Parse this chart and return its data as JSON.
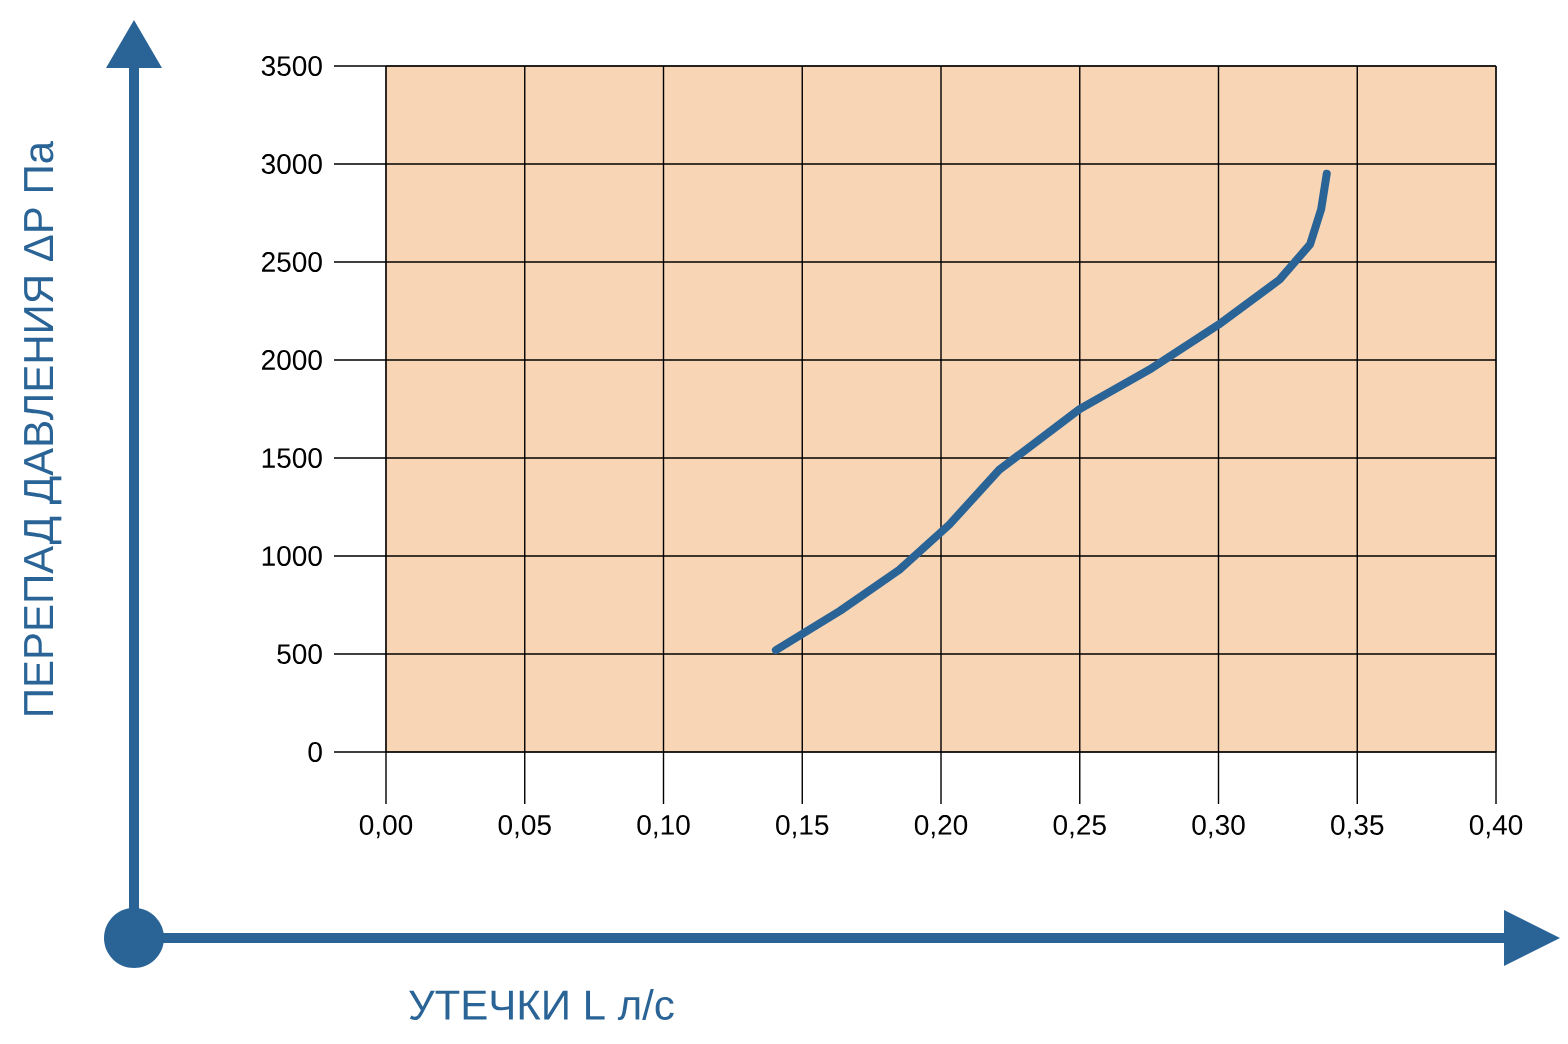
{
  "chart_data": {
    "type": "line",
    "xlabel": "УТЕЧКИ L л/с",
    "ylabel": "ПЕРЕПАД ДАВЛЕНИЯ  ΔP Па",
    "x": [
      0.1405,
      0.1636,
      0.185,
      0.203,
      0.221,
      0.25,
      0.275,
      0.3,
      0.322,
      0.333,
      0.337,
      0.339
    ],
    "series": [
      {
        "color": "#2a6496",
        "values": [
          520,
          720,
          930,
          1160,
          1440,
          1750,
          1950,
          2180,
          2410,
          2590,
          2770,
          2950
        ]
      }
    ],
    "xlim": [
      0,
      0.4
    ],
    "ylim": [
      0,
      3500
    ],
    "xticks": [
      {
        "value": 0,
        "label": "0,00"
      },
      {
        "value": 0.05,
        "label": "0,05"
      },
      {
        "value": 0.1,
        "label": "0,10"
      },
      {
        "value": 0.15,
        "label": "0,15"
      },
      {
        "value": 0.2,
        "label": "0,20"
      },
      {
        "value": 0.25,
        "label": "0,25"
      },
      {
        "value": 0.3,
        "label": "0,30"
      },
      {
        "value": 0.35,
        "label": "0,35"
      },
      {
        "value": 0.4,
        "label": "0,40"
      }
    ],
    "yticks": [
      0,
      500,
      1000,
      1500,
      2000,
      2500,
      3000,
      3500
    ],
    "grid": true,
    "marker": "none",
    "line_style": "solid"
  }
}
